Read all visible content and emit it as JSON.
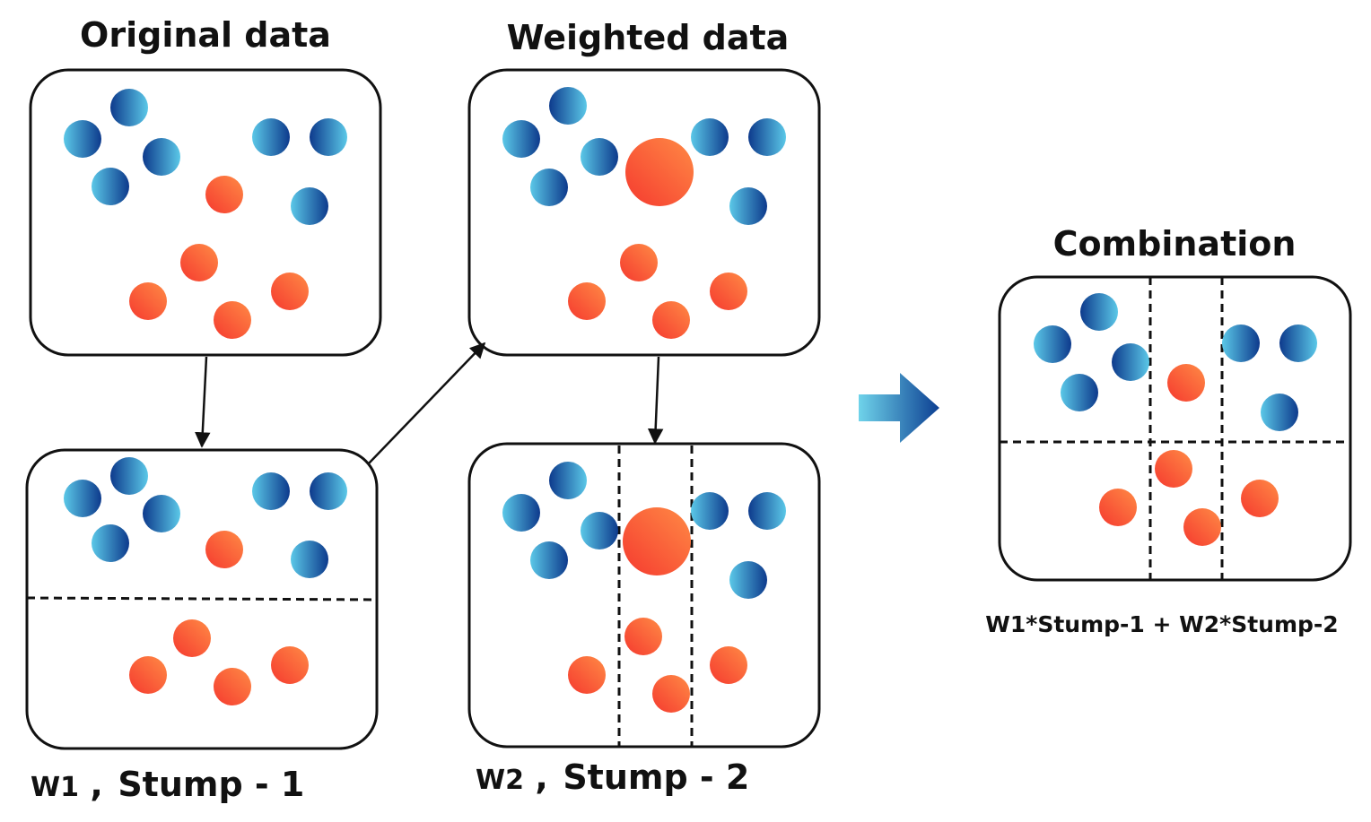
{
  "titles": {
    "original": "Original data",
    "weighted": "Weighted data",
    "combination": "Combination"
  },
  "captions": {
    "stump1_weight": "W1",
    "stump1_sep": ",",
    "stump1_label": "Stump - 1",
    "stump2_weight": "W2",
    "stump2_sep": ",",
    "stump2_label": "Stump - 2"
  },
  "formula": "W1*Stump-1 + W2*Stump-2",
  "colors": {
    "blue_light": "#5BC8E8",
    "blue_dark": "#0D3A8C",
    "orange_light": "#FF8A45",
    "orange_dark": "#F53A2F",
    "outline": "#111111",
    "arrow_big_start": "#6FD3EA",
    "arrow_big_end": "#0C3F92"
  },
  "icons": {
    "blue_point": "blue-gradient-circle",
    "orange_point": "orange-gradient-circle",
    "flow_arrow": "arrow-icon",
    "combine_arrow": "big-right-arrow-icon"
  }
}
